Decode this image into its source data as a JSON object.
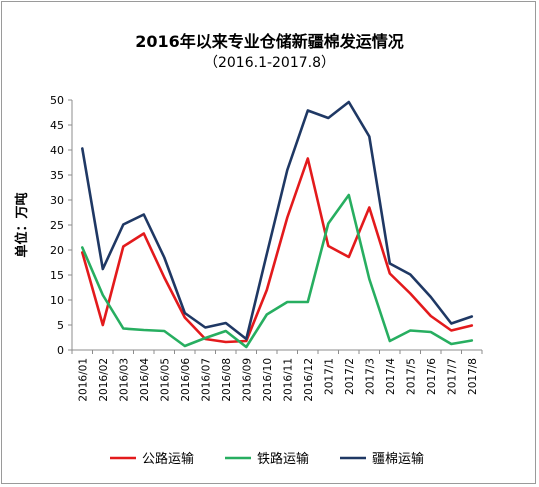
{
  "chart_data": {
    "type": "line",
    "title": "2016年以来专业仓储新疆棉发运情况",
    "subtitle": "（2016.1-2017.8）",
    "ylabel": "单位：万吨",
    "xlabel": "",
    "ylim": [
      0,
      50
    ],
    "yticks": [
      0,
      5,
      10,
      15,
      20,
      25,
      30,
      35,
      40,
      45,
      50
    ],
    "grid": false,
    "legend_position": "bottom",
    "categories": [
      "2016/01",
      "2016/02",
      "2016/03",
      "2016/04",
      "2016/05",
      "2016/06",
      "2016/07",
      "2016/08",
      "2016/09",
      "2016/10",
      "2016/11",
      "2016/12",
      "2017/1",
      "2017/2",
      "2017/3",
      "2017/4",
      "2017/5",
      "2017/6",
      "2017/7",
      "2017/8"
    ],
    "series": [
      {
        "name": "公路运输",
        "color": "#e31a1c",
        "values": [
          19.5,
          5,
          20.7,
          23.3,
          14.5,
          6.5,
          2.2,
          1.6,
          1.8,
          12,
          26.5,
          38.3,
          20.8,
          18.6,
          28.5,
          15.3,
          11.3,
          6.8,
          3.9,
          4.9
        ]
      },
      {
        "name": "铁路运输",
        "color": "#27ae60",
        "values": [
          20.5,
          11,
          4.3,
          4.0,
          3.8,
          0.8,
          2.4,
          3.8,
          0.6,
          7.1,
          9.6,
          9.6,
          25.3,
          31,
          14.2,
          1.8,
          3.9,
          3.6,
          1.2,
          1.9
        ]
      },
      {
        "name": "疆棉运输",
        "color": "#1f3864",
        "values": [
          40.3,
          16.2,
          25.1,
          27.1,
          18.5,
          7.4,
          4.5,
          5.4,
          2.2,
          19.2,
          36,
          47.9,
          46.4,
          49.6,
          42.7,
          17.3,
          15.1,
          10.6,
          5.3,
          6.7
        ]
      }
    ]
  }
}
